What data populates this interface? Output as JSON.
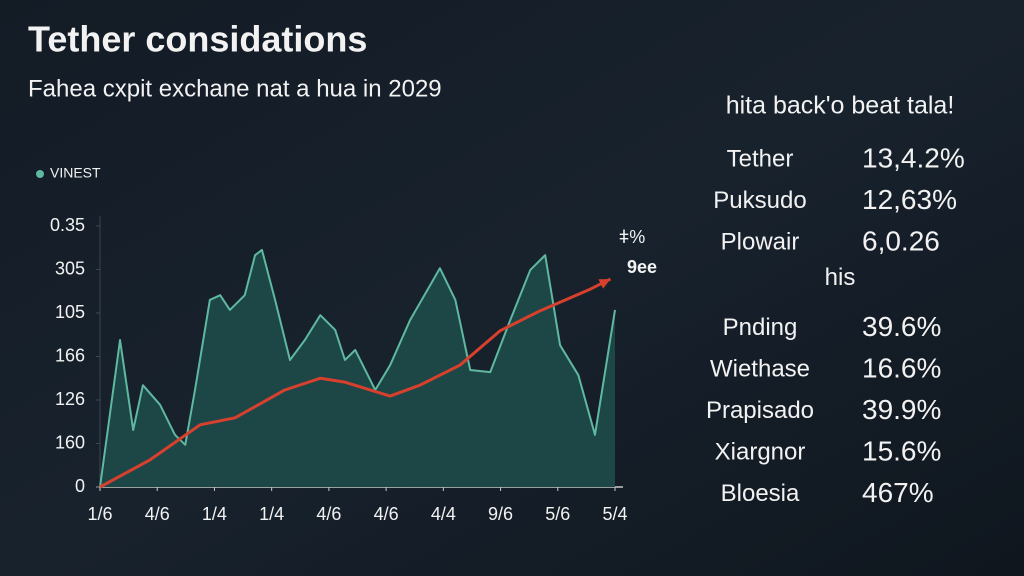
{
  "chart_data": {
    "type": "area",
    "title": "Tether considations",
    "subtitle": "Fahea cxpit exchane nat a hua in 2029",
    "annotations": [
      "ǂ%",
      "9ee"
    ],
    "legend": "top-left",
    "xlim": [
      0,
      9
    ],
    "xticks": [
      {
        "value": 0,
        "label": "1/6"
      },
      {
        "value": 1,
        "label": "4/6"
      },
      {
        "value": 2,
        "label": "1/4"
      },
      {
        "value": 3,
        "label": "1/4"
      },
      {
        "value": 4,
        "label": "4/6"
      },
      {
        "value": 5,
        "label": "4/6"
      },
      {
        "value": 6,
        "label": "4/4"
      },
      {
        "value": 7,
        "label": "9/6"
      },
      {
        "value": 8,
        "label": "5/6"
      },
      {
        "value": 9,
        "label": "5/4"
      }
    ],
    "ylim": [
      0,
      6
    ],
    "yticks": [
      {
        "value": 0,
        "label": "0"
      },
      {
        "value": 1,
        "label": "160"
      },
      {
        "value": 2,
        "label": "126"
      },
      {
        "value": 3,
        "label": "166"
      },
      {
        "value": 4,
        "label": "105"
      },
      {
        "value": 5,
        "label": "305"
      },
      {
        "value": 6,
        "label": "0.35"
      }
    ],
    "series": [
      {
        "name": "VINEST",
        "color": "#5fb8a0",
        "fill": "#1d4646",
        "x": [
          0,
          0.35,
          0.58,
          0.75,
          1.05,
          1.31,
          1.49,
          1.66,
          1.92,
          2.1,
          2.27,
          2.53,
          2.71,
          2.83,
          3.06,
          3.32,
          3.58,
          3.85,
          4.11,
          4.28,
          4.46,
          4.81,
          5.07,
          5.42,
          5.94,
          6.21,
          6.47,
          6.82,
          7.17,
          7.52,
          7.78,
          8.04,
          8.36,
          8.65,
          9
        ],
        "values": [
          0,
          3.38,
          1.31,
          2.34,
          1.89,
          1.2,
          0.97,
          2.23,
          4.3,
          4.41,
          4.07,
          4.41,
          5.33,
          5.45,
          4.3,
          2.92,
          3.38,
          3.95,
          3.61,
          2.92,
          3.15,
          2.23,
          2.8,
          3.84,
          5.03,
          4.3,
          2.69,
          2.64,
          3.84,
          4.99,
          5.33,
          3.26,
          2.57,
          1.2,
          4.07
        ]
      },
      {
        "color": "#d8402e",
        "style": "line-arrow",
        "x": [
          0,
          0.87,
          1.75,
          2.36,
          3.23,
          3.85,
          4.28,
          5.07,
          5.59,
          6.29,
          6.99,
          7.69,
          8.57,
          8.92
        ],
        "values": [
          0,
          0.62,
          1.43,
          1.59,
          2.23,
          2.5,
          2.41,
          2.09,
          2.34,
          2.8,
          3.59,
          4.05,
          4.55,
          4.78
        ]
      }
    ]
  },
  "panel": {
    "heading": "hita back'o beat tala!",
    "groups": [
      {
        "rows": [
          {
            "label": "Tether",
            "value": "13,4.2%",
            "color": "#e8b24a"
          },
          {
            "label": "Puksudo",
            "value": "12,63%",
            "color": "#4fd0d8"
          },
          {
            "label": "Plowair",
            "value": "6,0.26",
            "color": "#8fd8e8"
          }
        ]
      },
      {
        "title": "his",
        "rows": [
          {
            "label": "Pnding",
            "value": "39.6%",
            "color": "#e8703a"
          },
          {
            "label": "Wiethase",
            "value": "16.6%",
            "color": "#e8b030"
          },
          {
            "label": "Prapisado",
            "value": "39.9%",
            "color": "#e8a030"
          },
          {
            "label": "Xiargnor",
            "value": "15.6%",
            "color": "#e04a3a"
          },
          {
            "label": "Bloesia",
            "value": "467%",
            "color": "#e0503a"
          }
        ]
      }
    ]
  }
}
